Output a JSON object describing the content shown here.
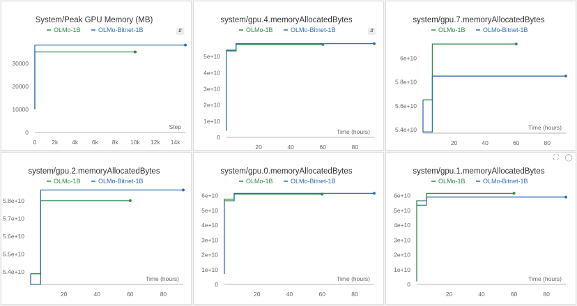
{
  "colors": {
    "olmo": "#2e8b47",
    "bitnet": "#2f6fb0",
    "axis": "#b5b5b5"
  },
  "chart_data": [
    {
      "type": "line",
      "title": "System/Peak GPU Memory (MB)",
      "xlabel": "Step",
      "xlim": [
        0,
        15000
      ],
      "ylim": [
        0,
        40000
      ],
      "xticks": [
        0,
        2000,
        4000,
        6000,
        8000,
        10000,
        12000,
        14000
      ],
      "xtick_labels": [
        "0",
        "2k",
        "4k",
        "6k",
        "8k",
        "10k",
        "12k",
        "14k"
      ],
      "yticks": [
        0,
        10000,
        20000,
        30000
      ],
      "ytick_labels": [
        "0",
        "10000",
        "20000",
        "30000"
      ],
      "legend": [
        "OLMo-1B",
        "OLMo-Bitnet-1B"
      ],
      "series": [
        {
          "name": "OLMo-1B",
          "color": "olmo",
          "points": [
            [
              0,
              10000
            ],
            [
              0,
              35000
            ],
            [
              10000,
              35000
            ]
          ]
        },
        {
          "name": "OLMo-Bitnet-1B",
          "color": "bitnet",
          "points": [
            [
              0,
              10000
            ],
            [
              0,
              38000
            ],
            [
              15000,
              38000
            ]
          ]
        }
      ]
    },
    {
      "type": "line",
      "title": "system/gpu.4.memoryAllocatedBytes",
      "xlabel": "Time (hours)",
      "xlim": [
        0,
        92
      ],
      "ylim": [
        0,
        60000000000
      ],
      "xticks": [
        20,
        40,
        60,
        80
      ],
      "xtick_labels": [
        "20",
        "40",
        "60",
        "80"
      ],
      "yticks": [
        0,
        10000000000,
        20000000000,
        30000000000,
        40000000000,
        50000000000
      ],
      "ytick_labels": [
        "0",
        "1e+10",
        "2e+10",
        "3e+10",
        "4e+10",
        "5e+10"
      ],
      "legend": [
        "OLMo-1B",
        "OLMo-Bitnet-1B"
      ],
      "series": [
        {
          "name": "OLMo-1B",
          "color": "olmo",
          "points": [
            [
              0,
              53500000000
            ],
            [
              6,
              53500000000
            ],
            [
              6,
              57500000000
            ],
            [
              60,
              57500000000
            ]
          ]
        },
        {
          "name": "OLMo-Bitnet-1B",
          "color": "bitnet",
          "points": [
            [
              0,
              4000000000
            ],
            [
              0,
              54000000000
            ],
            [
              6,
              54000000000
            ],
            [
              6,
              58000000000
            ],
            [
              92,
              58000000000
            ]
          ]
        }
      ]
    },
    {
      "type": "line",
      "title": "system/gpu.7.memoryAllocatedBytes",
      "xlabel": "Time (hours)",
      "xlim": [
        0,
        92
      ],
      "ylim": [
        53700000000,
        61500000000
      ],
      "xticks": [
        20,
        40,
        60,
        80
      ],
      "xtick_labels": [
        "20",
        "40",
        "60",
        "80"
      ],
      "yticks": [
        54000000000,
        56000000000,
        58000000000,
        60000000000
      ],
      "ytick_labels": [
        "5.4e+10",
        "5.6e+10",
        "5.8e+10",
        "6e+10"
      ],
      "legend": [
        "OLMo-1B",
        "OLMo-Bitnet-1B"
      ],
      "series": [
        {
          "name": "OLMo-1B",
          "color": "olmo",
          "points": [
            [
              0,
              56500000000
            ],
            [
              6,
              56500000000
            ],
            [
              6,
              61200000000
            ],
            [
              60,
              61200000000
            ]
          ]
        },
        {
          "name": "OLMo-Bitnet-1B",
          "color": "bitnet",
          "points": [
            [
              0,
              56500000000
            ],
            [
              0,
              53800000000
            ],
            [
              6,
              53800000000
            ],
            [
              6,
              58500000000
            ],
            [
              92,
              58500000000
            ]
          ]
        }
      ]
    },
    {
      "type": "line",
      "title": "system/gpu.2.memoryAllocatedBytes",
      "xlabel": "Time (hours)",
      "xlim": [
        0,
        92
      ],
      "ylim": [
        53300000000,
        58700000000
      ],
      "xticks": [
        20,
        40,
        60,
        80
      ],
      "xtick_labels": [
        "20",
        "40",
        "60",
        "80"
      ],
      "yticks": [
        54000000000,
        55000000000,
        56000000000,
        57000000000,
        58000000000
      ],
      "ytick_labels": [
        "5.4e+10",
        "5.5e+10",
        "5.6e+10",
        "5.7e+10",
        "5.8e+10"
      ],
      "legend": [
        "OLMo-1B",
        "OLMo-Bitnet-1B"
      ],
      "series": [
        {
          "name": "OLMo-1B",
          "color": "olmo",
          "points": [
            [
              0,
              53900000000
            ],
            [
              6,
              53900000000
            ],
            [
              6,
              58000000000
            ],
            [
              60,
              58000000000
            ]
          ]
        },
        {
          "name": "OLMo-Bitnet-1B",
          "color": "bitnet",
          "points": [
            [
              0,
              53900000000
            ],
            [
              0,
              53300000000
            ],
            [
              6,
              53300000000
            ],
            [
              6,
              58600000000
            ],
            [
              92,
              58600000000
            ]
          ]
        }
      ]
    },
    {
      "type": "line",
      "title": "system/gpu.0.memoryAllocatedBytes",
      "xlabel": "Time (hours)",
      "xlim": [
        0,
        92
      ],
      "ylim": [
        0,
        65000000000
      ],
      "xticks": [
        20,
        40,
        60,
        80
      ],
      "xtick_labels": [
        "20",
        "40",
        "60",
        "80"
      ],
      "yticks": [
        0,
        10000000000,
        20000000000,
        30000000000,
        40000000000,
        50000000000,
        60000000000
      ],
      "ytick_labels": [
        "0",
        "1e+10",
        "2e+10",
        "3e+10",
        "4e+10",
        "5e+10",
        "6e+10"
      ],
      "legend": [
        "OLMo-1B",
        "OLMo-Bitnet-1B"
      ],
      "series": [
        {
          "name": "OLMo-1B",
          "color": "olmo",
          "points": [
            [
              0,
              56500000000
            ],
            [
              6,
              56500000000
            ],
            [
              6,
              61000000000
            ],
            [
              60,
              61000000000
            ]
          ]
        },
        {
          "name": "OLMo-Bitnet-1B",
          "color": "bitnet",
          "points": [
            [
              0,
              7000000000
            ],
            [
              0,
              57500000000
            ],
            [
              6,
              57500000000
            ],
            [
              6,
              61500000000
            ],
            [
              92,
              61500000000
            ]
          ]
        }
      ]
    },
    {
      "type": "line",
      "title": "system/gpu.1.memoryAllocatedBytes",
      "xlabel": "Time (hours)",
      "xlim": [
        0,
        92
      ],
      "ylim": [
        0,
        65000000000
      ],
      "xticks": [
        20,
        40,
        60,
        80
      ],
      "xtick_labels": [
        "20",
        "40",
        "60",
        "80"
      ],
      "yticks": [
        0,
        10000000000,
        20000000000,
        30000000000,
        40000000000,
        50000000000,
        60000000000
      ],
      "ytick_labels": [
        "0",
        "1e+10",
        "2e+10",
        "3e+10",
        "4e+10",
        "5e+10",
        "6e+10"
      ],
      "legend": [
        "OLMo-1B",
        "OLMo-Bitnet-1B"
      ],
      "series": [
        {
          "name": "OLMo-1B",
          "color": "olmo",
          "points": [
            [
              0,
              2000000000
            ],
            [
              0,
              56500000000
            ],
            [
              6,
              56500000000
            ],
            [
              6,
              61500000000
            ],
            [
              60,
              61500000000
            ]
          ]
        },
        {
          "name": "OLMo-Bitnet-1B",
          "color": "bitnet",
          "points": [
            [
              0,
              53500000000
            ],
            [
              6,
              53500000000
            ],
            [
              6,
              59000000000
            ],
            [
              92,
              59000000000
            ]
          ]
        }
      ]
    }
  ],
  "icons": {
    "legend_toggle": "updown-arrows-icon",
    "expand": "expand-icon",
    "comment": "comment-icon"
  }
}
